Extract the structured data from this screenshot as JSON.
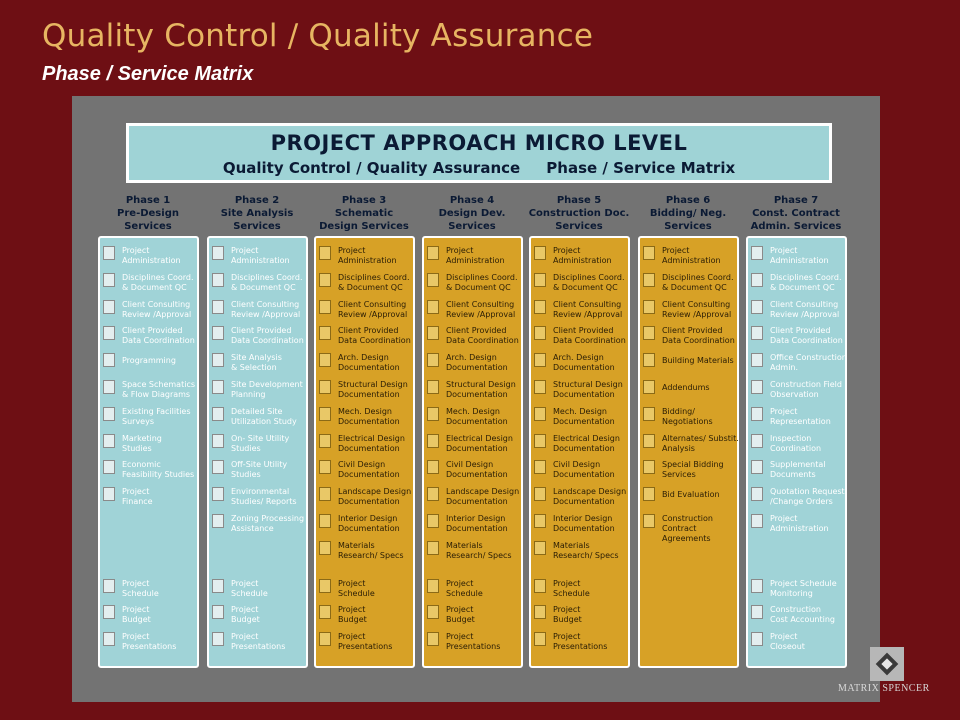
{
  "slide": {
    "title": "Quality Control / Quality Assurance",
    "subtitle": "Phase / Service Matrix"
  },
  "banner": {
    "line1": "PROJECT APPROACH MICRO LEVEL",
    "line2": "Quality Control / Quality Assurance     Phase / Service Matrix"
  },
  "colors": {
    "background": "#6e0f14",
    "title": "#e7b562",
    "panel": "#737373",
    "blue_column": "#a0d3d7",
    "gold_column": "#d7a126"
  },
  "phases": [
    {
      "header": [
        "Phase 1",
        "Pre-Design",
        "Services"
      ],
      "color": "blue",
      "items": [
        [
          "Project",
          "Administration"
        ],
        [
          "Disciplines Coord.",
          "& Document QC"
        ],
        [
          "Client Consulting",
          "Review /Approval"
        ],
        [
          "Client Provided",
          "Data Coordination"
        ],
        [
          "Programming"
        ],
        [
          "Space Schematics",
          "& Flow Diagrams"
        ],
        [
          "Existing Facilities",
          "Surveys"
        ],
        [
          "Marketing",
          "Studies"
        ],
        [
          "Economic",
          "Feasibility Studies"
        ],
        [
          "Project",
          "Finance"
        ],
        null,
        null,
        [
          "Project",
          "Schedule"
        ],
        [
          "Project",
          "Budget"
        ],
        [
          "Project",
          "Presentations"
        ]
      ]
    },
    {
      "header": [
        "Phase 2",
        "Site Analysis",
        "Services"
      ],
      "color": "blue",
      "items": [
        [
          "Project",
          "Administration"
        ],
        [
          "Disciplines Coord.",
          "& Document QC"
        ],
        [
          "Client Consulting",
          "Review /Approval"
        ],
        [
          "Client Provided",
          "Data Coordination"
        ],
        [
          "Site Analysis",
          "& Selection"
        ],
        [
          "Site Development",
          "Planning"
        ],
        [
          "Detailed Site",
          "Utilization Study"
        ],
        [
          "On- Site Utility",
          "Studies"
        ],
        [
          "Off-Site Utility",
          "Studies"
        ],
        [
          "Environmental",
          "Studies/ Reports"
        ],
        [
          "Zoning Processing",
          "Assistance"
        ],
        null,
        [
          "Project",
          "Schedule"
        ],
        [
          "Project",
          "Budget"
        ],
        [
          "Project",
          "Presentations"
        ]
      ]
    },
    {
      "header": [
        "Phase 3",
        "Schematic",
        "Design Services"
      ],
      "color": "gold",
      "items": [
        [
          "Project",
          "Administration"
        ],
        [
          "Disciplines Coord.",
          "& Document QC"
        ],
        [
          "Client Consulting",
          "Review /Approval"
        ],
        [
          "Client Provided",
          "Data Coordination"
        ],
        [
          "Arch. Design",
          "Documentation"
        ],
        [
          "Structural Design",
          "Documentation"
        ],
        [
          "Mech. Design",
          "Documentation"
        ],
        [
          "Electrical Design",
          "Documentation"
        ],
        [
          "Civil Design",
          "Documentation"
        ],
        [
          "Landscape Design",
          "Documentation"
        ],
        [
          "Interior Design",
          "Documentation"
        ],
        [
          "Materials",
          "Research/ Specs"
        ],
        [
          "Project",
          "Schedule"
        ],
        [
          "Project",
          "Budget"
        ],
        [
          "Project",
          "Presentations"
        ]
      ]
    },
    {
      "header": [
        "Phase 4",
        "Design Dev.",
        "Services"
      ],
      "color": "gold",
      "items": [
        [
          "Project",
          "Administration"
        ],
        [
          "Disciplines Coord.",
          "& Document QC"
        ],
        [
          "Client Consulting",
          "Review /Approval"
        ],
        [
          "Client Provided",
          "Data Coordination"
        ],
        [
          "Arch. Design",
          "Documentation"
        ],
        [
          "Structural Design",
          "Documentation"
        ],
        [
          "Mech. Design",
          "Documentation"
        ],
        [
          "Electrical Design",
          "Documentation"
        ],
        [
          "Civil Design",
          "Documentation"
        ],
        [
          "Landscape Design",
          "Documentation"
        ],
        [
          "Interior Design",
          "Documentation"
        ],
        [
          "Materials",
          "Research/ Specs"
        ],
        [
          "Project",
          "Schedule"
        ],
        [
          "Project",
          "Budget"
        ],
        [
          "Project",
          "Presentations"
        ]
      ]
    },
    {
      "header": [
        "Phase 5",
        "Construction Doc.",
        "Services"
      ],
      "color": "gold",
      "items": [
        [
          "Project",
          "Administration"
        ],
        [
          "Disciplines Coord.",
          "& Document QC"
        ],
        [
          "Client Consulting",
          "Review /Approval"
        ],
        [
          "Client Provided",
          "Data Coordination"
        ],
        [
          "Arch. Design",
          "Documentation"
        ],
        [
          "Structural Design",
          "Documentation"
        ],
        [
          "Mech. Design",
          "Documentation"
        ],
        [
          "Electrical Design",
          "Documentation"
        ],
        [
          "Civil Design",
          "Documentation"
        ],
        [
          "Landscape Design",
          "Documentation"
        ],
        [
          "Interior Design",
          "Documentation"
        ],
        [
          "Materials",
          "Research/ Specs"
        ],
        [
          "Project",
          "Schedule"
        ],
        [
          "Project",
          "Budget"
        ],
        [
          "Project",
          "Presentations"
        ]
      ]
    },
    {
      "header": [
        "Phase 6",
        "Bidding/ Neg.",
        "Services"
      ],
      "color": "gold",
      "items": [
        [
          "Project",
          "Administration"
        ],
        [
          "Disciplines Coord.",
          "& Document QC"
        ],
        [
          "Client Consulting",
          "Review /Approval"
        ],
        [
          "Client Provided",
          "Data Coordination"
        ],
        [
          "Building Materials"
        ],
        [
          "Addendums"
        ],
        [
          "Bidding/",
          "Negotiations"
        ],
        [
          "Alternates/ Substit.",
          "Analysis"
        ],
        [
          "Special Bidding",
          "Services"
        ],
        [
          "Bid Evaluation"
        ],
        [
          "Construction",
          "Contract",
          "Agreements"
        ],
        null,
        null,
        null,
        null
      ]
    },
    {
      "header": [
        "Phase 7",
        "Const. Contract",
        "Admin. Services"
      ],
      "color": "blue",
      "items": [
        [
          "Project",
          "Administration"
        ],
        [
          "Disciplines Coord.",
          "& Document QC"
        ],
        [
          "Client Consulting",
          "Review /Approval"
        ],
        [
          "Client Provided",
          "Data Coordination"
        ],
        [
          "Office Construction",
          "Admin."
        ],
        [
          "Construction Field",
          "Observation"
        ],
        [
          "Project",
          "Representation"
        ],
        [
          "Inspection",
          "Coordination"
        ],
        [
          "Supplemental",
          "Documents"
        ],
        [
          "Quotation Request",
          "/Change Orders"
        ],
        [
          "Project",
          "Administration"
        ],
        null,
        [
          "Project Schedule",
          "Monitoring"
        ],
        [
          "Construction",
          "Cost Accounting"
        ],
        [
          "Project",
          "Closeout"
        ]
      ]
    }
  ],
  "logo": {
    "text": "MATRIX SPENCER",
    "icon": "diamond-logo-icon"
  }
}
